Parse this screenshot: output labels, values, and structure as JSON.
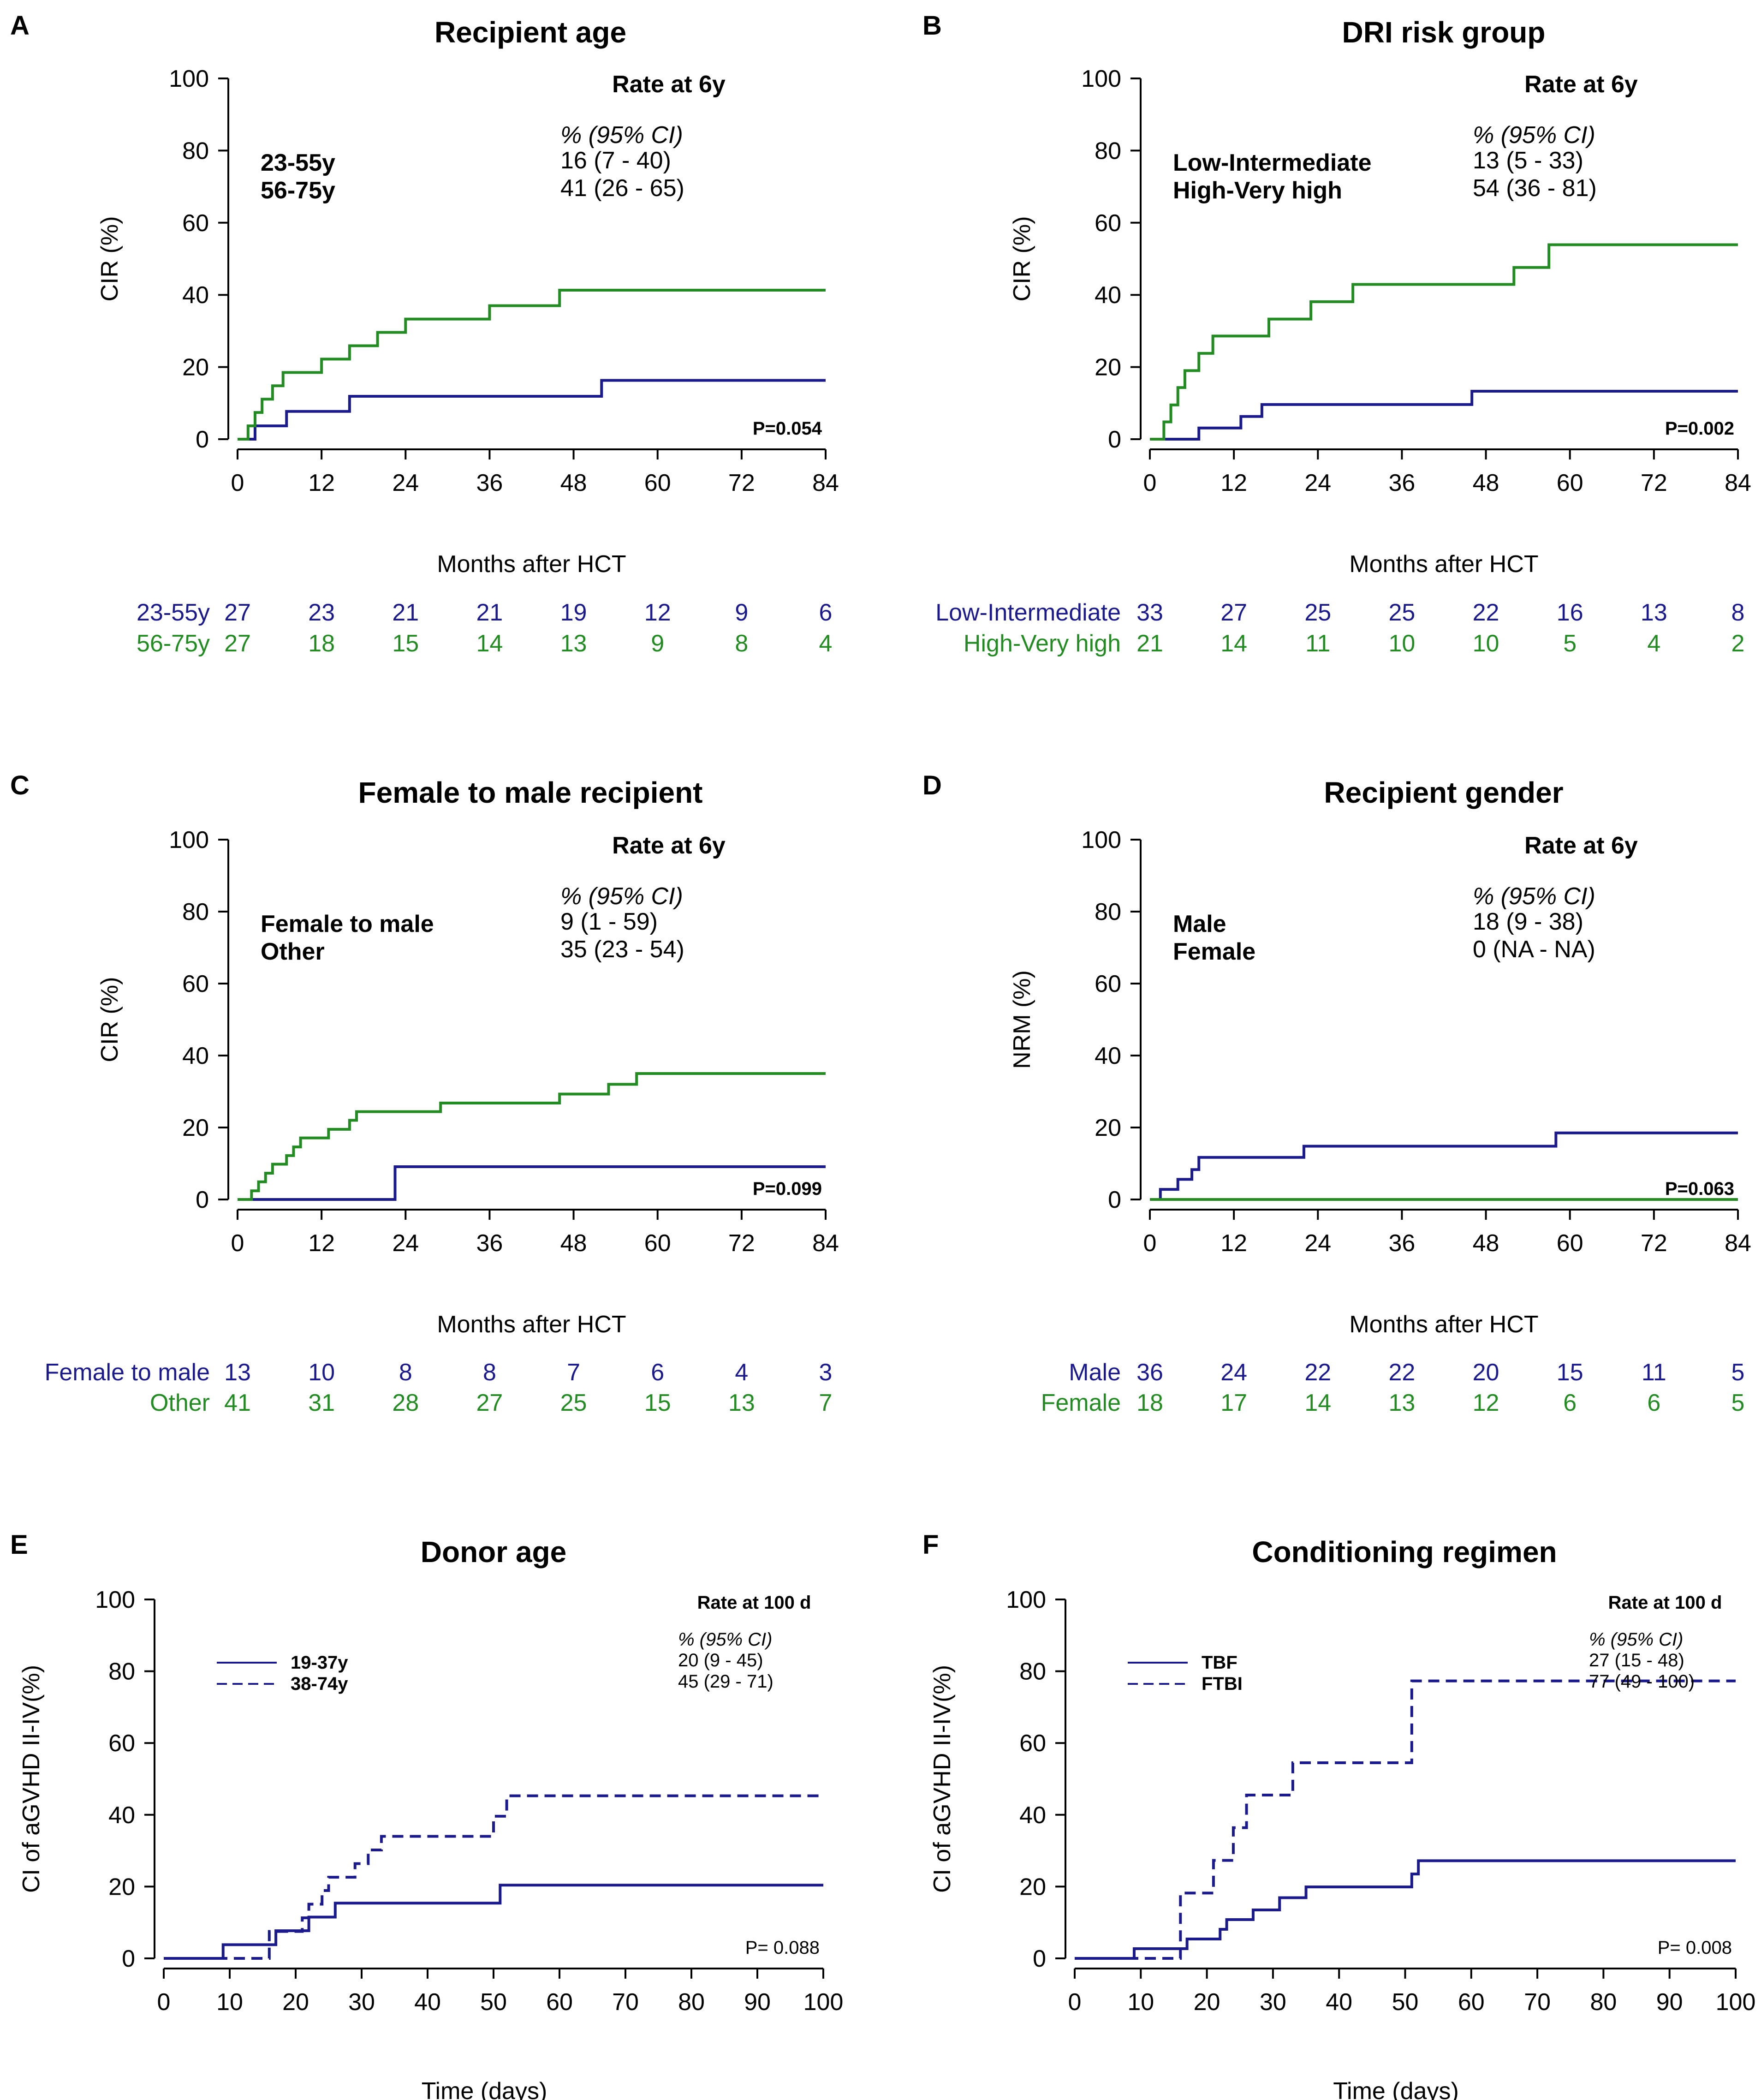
{
  "colors": {
    "blue": "#1a1a8c",
    "green": "#228b22",
    "axis": "#000000"
  },
  "chart_data": [
    {
      "letter": "A",
      "type": "line",
      "title": "Recipient age",
      "xlabel": "Months after HCT",
      "ylabel": "CIR (%)",
      "xlim": [
        0,
        84
      ],
      "ylim": [
        0,
        100
      ],
      "xticks": [
        "0",
        "12",
        "24",
        "36",
        "48",
        "60",
        "72",
        "84"
      ],
      "yticks": [
        "0",
        "20",
        "40",
        "60",
        "80",
        "100"
      ],
      "rate_header": "Rate at 6y",
      "ci_header": "% (95% CI)",
      "p_value": "P=0.054",
      "series": [
        {
          "name": "23-55y",
          "color": "blue",
          "dash": false,
          "rate": "16 (7 - 40)",
          "x": [
            0,
            2.5,
            7,
            16,
            52,
            84
          ],
          "y": [
            0,
            3.7,
            7.7,
            11.9,
            16.3,
            16.3
          ]
        },
        {
          "name": "56-75y",
          "color": "green",
          "dash": false,
          "rate": "41 (26 - 65)",
          "x": [
            0,
            1.5,
            2.5,
            3.5,
            5,
            6.5,
            8,
            12,
            16,
            20,
            24,
            30,
            36,
            46,
            57,
            84
          ],
          "y": [
            0,
            3.7,
            7.4,
            11.1,
            14.8,
            18.5,
            18.5,
            22.2,
            25.9,
            29.6,
            33.3,
            33.3,
            37.0,
            41.3,
            41.3,
            41.3
          ]
        }
      ],
      "risk_table": {
        "rows": [
          {
            "label": "23-55y",
            "color": "blue",
            "values": [
              "27",
              "23",
              "21",
              "21",
              "19",
              "12",
              "9",
              "6"
            ]
          },
          {
            "label": "56-75y",
            "color": "green",
            "values": [
              "27",
              "18",
              "15",
              "14",
              "13",
              "9",
              "8",
              "4"
            ]
          }
        ]
      }
    },
    {
      "letter": "B",
      "type": "line",
      "title": "DRI risk group",
      "xlabel": "Months after HCT",
      "ylabel": "CIR (%)",
      "xlim": [
        0,
        84
      ],
      "ylim": [
        0,
        100
      ],
      "xticks": [
        "0",
        "12",
        "24",
        "36",
        "48",
        "60",
        "72",
        "84"
      ],
      "yticks": [
        "0",
        "20",
        "40",
        "60",
        "80",
        "100"
      ],
      "rate_header": "Rate at 6y",
      "ci_header": "% (95% CI)",
      "p_value": "P=0.002",
      "series": [
        {
          "name": "Low-Intermediate",
          "color": "blue",
          "dash": false,
          "rate": "13 (5 - 33)",
          "x": [
            0,
            7,
            13,
            16,
            46,
            84
          ],
          "y": [
            0,
            3.1,
            6.3,
            9.6,
            13.3,
            13.3
          ]
        },
        {
          "name": "High-Very high",
          "color": "green",
          "dash": false,
          "rate": "54 (36 - 81)",
          "x": [
            0,
            2,
            3,
            4,
            5,
            7,
            8,
            9,
            17,
            23,
            29,
            52,
            57,
            84
          ],
          "y": [
            0,
            4.8,
            9.5,
            14.3,
            19.0,
            23.8,
            23.8,
            28.6,
            33.3,
            38.1,
            42.9,
            47.6,
            53.9,
            53.9
          ]
        }
      ],
      "risk_table": {
        "rows": [
          {
            "label": "Low-Intermediate",
            "color": "blue",
            "values": [
              "33",
              "27",
              "25",
              "25",
              "22",
              "16",
              "13",
              "8"
            ]
          },
          {
            "label": "High-Very high",
            "color": "green",
            "values": [
              "21",
              "14",
              "11",
              "10",
              "10",
              "5",
              "4",
              "2"
            ]
          }
        ]
      }
    },
    {
      "letter": "C",
      "type": "line",
      "title": "Female to male recipient",
      "xlabel": "Months after HCT",
      "ylabel": "CIR (%)",
      "xlim": [
        0,
        84
      ],
      "ylim": [
        0,
        100
      ],
      "xticks": [
        "0",
        "12",
        "24",
        "36",
        "48",
        "60",
        "72",
        "84"
      ],
      "yticks": [
        "0",
        "20",
        "40",
        "60",
        "80",
        "100"
      ],
      "rate_header": "Rate at 6y",
      "ci_header": "% (95% CI)",
      "p_value": "P=0.099",
      "series": [
        {
          "name": "Female to male",
          "color": "blue",
          "dash": false,
          "rate": "9 (1 - 59)",
          "x": [
            0,
            22.5,
            84
          ],
          "y": [
            0,
            9.1,
            9.1
          ]
        },
        {
          "name": "Other",
          "color": "green",
          "dash": false,
          "rate": "35 (23 - 54)",
          "x": [
            0,
            2,
            3,
            4,
            5,
            7,
            8,
            9,
            13,
            16,
            17,
            29,
            46,
            53,
            57,
            84
          ],
          "y": [
            0,
            2.4,
            4.9,
            7.3,
            9.8,
            12.2,
            14.6,
            17.1,
            19.5,
            22.0,
            24.4,
            26.8,
            29.3,
            32.0,
            35.0,
            35.0
          ]
        }
      ],
      "risk_table": {
        "rows": [
          {
            "label": "Female to male",
            "color": "blue",
            "values": [
              "13",
              "10",
              "8",
              "8",
              "7",
              "6",
              "4",
              "3"
            ]
          },
          {
            "label": "Other",
            "color": "green",
            "values": [
              "41",
              "31",
              "28",
              "27",
              "25",
              "15",
              "13",
              "7"
            ]
          }
        ]
      }
    },
    {
      "letter": "D",
      "type": "line",
      "title": "Recipient gender",
      "xlabel": "Months after HCT",
      "ylabel": "NRM (%)",
      "xlim": [
        0,
        84
      ],
      "ylim": [
        0,
        100
      ],
      "xticks": [
        "0",
        "12",
        "24",
        "36",
        "48",
        "60",
        "72",
        "84"
      ],
      "yticks": [
        "0",
        "20",
        "40",
        "60",
        "80",
        "100"
      ],
      "rate_header": "Rate at 6y",
      "ci_header": "% (95% CI)",
      "p_value": "P=0.063",
      "series": [
        {
          "name": "Male",
          "color": "blue",
          "dash": false,
          "rate": "18 (9 - 38)",
          "x": [
            0,
            1.5,
            4,
            6,
            7,
            22,
            58,
            84
          ],
          "y": [
            0,
            2.8,
            5.6,
            8.3,
            11.7,
            14.8,
            18.5,
            18.5
          ]
        },
        {
          "name": "Female",
          "color": "green",
          "dash": false,
          "rate": "0 (NA - NA)",
          "x": [
            0,
            84
          ],
          "y": [
            0,
            0
          ]
        }
      ],
      "risk_table": {
        "rows": [
          {
            "label": "Male",
            "color": "blue",
            "values": [
              "36",
              "24",
              "22",
              "22",
              "20",
              "15",
              "11",
              "5"
            ]
          },
          {
            "label": "Female",
            "color": "green",
            "values": [
              "18",
              "17",
              "14",
              "13",
              "12",
              "6",
              "6",
              "5"
            ]
          }
        ]
      }
    },
    {
      "letter": "E",
      "type": "line",
      "title": "Donor age",
      "xlabel": "Time (days)",
      "ylabel": "CI of aGVHD II-IV(%)",
      "xlim": [
        0,
        100
      ],
      "ylim": [
        0,
        100
      ],
      "xticks": [
        "0",
        "10",
        "20",
        "30",
        "40",
        "50",
        "60",
        "70",
        "80",
        "90",
        "100"
      ],
      "yticks": [
        "0",
        "20",
        "40",
        "60",
        "80",
        "100"
      ],
      "rate_header": "Rate at 100 d",
      "ci_header": "% (95% CI)",
      "p_value": "P= 0.088",
      "series": [
        {
          "name": "19-37y",
          "color": "blue",
          "dash": false,
          "rate": "20 (9 - 45)",
          "x": [
            0,
            9,
            17,
            22,
            25,
            26,
            51,
            100
          ],
          "y": [
            0,
            3.8,
            7.7,
            11.5,
            11.5,
            15.4,
            20.4,
            20.4
          ]
        },
        {
          "name": "38-74y",
          "color": "blue",
          "dash": true,
          "rate": "45 (29 - 71)",
          "x": [
            0,
            16,
            21,
            22,
            24,
            25,
            27,
            29,
            31,
            33,
            35,
            50,
            52,
            100
          ],
          "y": [
            0,
            7.5,
            11.3,
            15.1,
            18.9,
            22.6,
            22.6,
            26.4,
            30.2,
            34.0,
            34.0,
            39.6,
            45.3,
            45.3
          ]
        }
      ]
    },
    {
      "letter": "F",
      "type": "line",
      "title": "Conditioning regimen",
      "xlabel": "Time (days)",
      "ylabel": "CI of aGVHD II-IV(%)",
      "xlim": [
        0,
        100
      ],
      "ylim": [
        0,
        100
      ],
      "xticks": [
        "0",
        "10",
        "20",
        "30",
        "40",
        "50",
        "60",
        "70",
        "80",
        "90",
        "100"
      ],
      "yticks": [
        "0",
        "20",
        "40",
        "60",
        "80",
        "100"
      ],
      "rate_header": "Rate at 100 d",
      "ci_header": "% (95% CI)",
      "p_value": "P= 0.008",
      "series": [
        {
          "name": "TBF",
          "color": "blue",
          "dash": false,
          "rate": "27 (15 - 48)",
          "x": [
            0,
            9,
            17,
            22,
            23,
            25,
            27,
            29,
            31,
            35,
            51,
            52,
            100
          ],
          "y": [
            0,
            2.7,
            5.4,
            8.1,
            10.8,
            10.8,
            13.5,
            13.5,
            16.9,
            19.9,
            23.5,
            27.2,
            27.2
          ]
        },
        {
          "name": "FTBI",
          "color": "blue",
          "dash": true,
          "rate": "77 (49 - 100)",
          "x": [
            0,
            16,
            21,
            24,
            26,
            30,
            33,
            51,
            100
          ],
          "y": [
            0,
            18.2,
            27.3,
            36.4,
            45.5,
            45.5,
            54.5,
            77.3,
            77.3
          ]
        }
      ]
    }
  ]
}
